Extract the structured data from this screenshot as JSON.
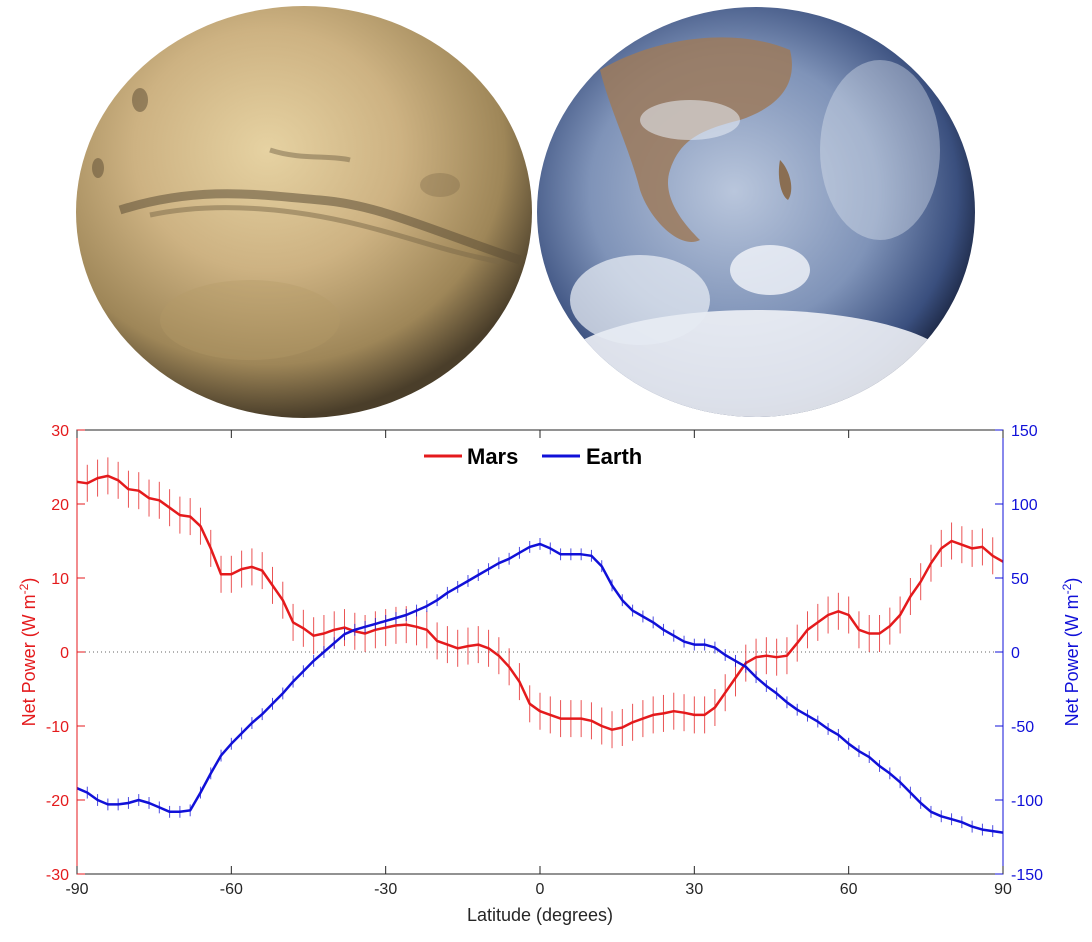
{
  "images": [
    {
      "name": "mars",
      "icon": "mars-globe"
    },
    {
      "name": "earth",
      "icon": "earth-globe"
    }
  ],
  "chart_data": {
    "type": "line",
    "xlabel": "Latitude (degrees)",
    "xlim": [
      -90,
      90
    ],
    "xticks": [
      -90,
      -60,
      -30,
      0,
      30,
      60,
      90
    ],
    "ylabel_left": "Net Power (W m",
    "ylabel_right": "Net Power (W m",
    "ylabel_sup": "-2",
    "ylabel_close": ")",
    "ylim_left": [
      -30,
      30
    ],
    "yticks_left": [
      -30,
      -20,
      -10,
      0,
      10,
      20,
      30
    ],
    "ylim_right": [
      -150,
      150
    ],
    "yticks_right": [
      -150,
      -100,
      -50,
      0,
      50,
      100,
      150
    ],
    "zero_line": true,
    "legend_position": "top-center",
    "series": [
      {
        "name": "Mars",
        "axis": "left",
        "color": "#e41a1c",
        "errorbar": 2.5,
        "x": [
          -90,
          -88,
          -86,
          -84,
          -82,
          -80,
          -78,
          -76,
          -74,
          -72,
          -70,
          -68,
          -66,
          -64,
          -62,
          -60,
          -58,
          -56,
          -54,
          -52,
          -50,
          -48,
          -46,
          -44,
          -42,
          -40,
          -38,
          -36,
          -34,
          -32,
          -30,
          -28,
          -26,
          -24,
          -22,
          -20,
          -18,
          -16,
          -14,
          -12,
          -10,
          -8,
          -6,
          -4,
          -2,
          0,
          2,
          4,
          6,
          8,
          10,
          12,
          14,
          16,
          18,
          20,
          22,
          24,
          26,
          28,
          30,
          32,
          34,
          36,
          38,
          40,
          42,
          44,
          46,
          48,
          50,
          52,
          54,
          56,
          58,
          60,
          62,
          64,
          66,
          68,
          70,
          72,
          74,
          76,
          78,
          80,
          82,
          84,
          86,
          88,
          90
        ],
        "values": [
          23,
          22.8,
          23.5,
          23.8,
          23.2,
          22,
          21.8,
          20.8,
          20.5,
          19.5,
          18.5,
          18.3,
          17,
          14,
          10.5,
          10.5,
          11.2,
          11.5,
          11,
          9,
          7,
          4,
          3.2,
          2.2,
          2.5,
          3,
          3.3,
          2.8,
          2.5,
          3,
          3.3,
          3.6,
          3.7,
          3.4,
          3,
          1.5,
          1,
          0.5,
          0.8,
          1,
          0.5,
          -0.5,
          -2,
          -4,
          -7,
          -8,
          -8.5,
          -9,
          -9,
          -9,
          -9.3,
          -10,
          -10.5,
          -10.2,
          -9.5,
          -9,
          -8.5,
          -8.3,
          -8,
          -8.2,
          -8.5,
          -8.5,
          -7.5,
          -5.5,
          -3.5,
          -1.5,
          -0.7,
          -0.5,
          -0.7,
          -0.5,
          1.2,
          3,
          4,
          5,
          5.5,
          5,
          3,
          2.5,
          2.5,
          3.5,
          5,
          7.5,
          9.5,
          12,
          14,
          15,
          14.5,
          14,
          14.2,
          13,
          12.2
        ]
      },
      {
        "name": "Earth",
        "axis": "right",
        "color": "#1010d8",
        "errorbar": 4,
        "x": [
          -90,
          -88,
          -86,
          -84,
          -82,
          -80,
          -78,
          -76,
          -74,
          -72,
          -70,
          -68,
          -66,
          -64,
          -62,
          -60,
          -58,
          -56,
          -54,
          -52,
          -50,
          -48,
          -46,
          -44,
          -42,
          -40,
          -38,
          -36,
          -34,
          -32,
          -30,
          -28,
          -26,
          -24,
          -22,
          -20,
          -18,
          -16,
          -14,
          -12,
          -10,
          -8,
          -6,
          -4,
          -2,
          0,
          2,
          4,
          6,
          8,
          10,
          12,
          14,
          16,
          18,
          20,
          22,
          24,
          26,
          28,
          30,
          32,
          34,
          36,
          38,
          40,
          42,
          44,
          46,
          48,
          50,
          52,
          54,
          56,
          58,
          60,
          62,
          64,
          66,
          68,
          70,
          72,
          74,
          76,
          78,
          80,
          82,
          84,
          86,
          88,
          90
        ],
        "values": [
          -92,
          -95,
          -100,
          -103,
          -103,
          -102,
          -100,
          -102,
          -105,
          -108,
          -108,
          -107,
          -95,
          -82,
          -70,
          -62,
          -55,
          -48,
          -42,
          -35,
          -28,
          -20,
          -13,
          -6,
          0,
          6,
          12,
          15,
          17,
          19,
          21,
          23,
          25,
          28,
          31,
          35,
          40,
          44,
          48,
          52,
          56,
          60,
          63,
          67,
          71,
          73,
          70,
          66,
          66,
          66,
          65,
          58,
          45,
          35,
          28,
          24,
          20,
          15,
          11,
          7,
          5,
          5,
          3,
          -2,
          -6,
          -10,
          -17,
          -23,
          -28,
          -34,
          -39,
          -43,
          -47,
          -52,
          -56,
          -62,
          -67,
          -71,
          -77,
          -82,
          -88,
          -95,
          -102,
          -108,
          -111,
          -113,
          -115,
          -118,
          -120,
          -121,
          -122
        ]
      }
    ]
  }
}
